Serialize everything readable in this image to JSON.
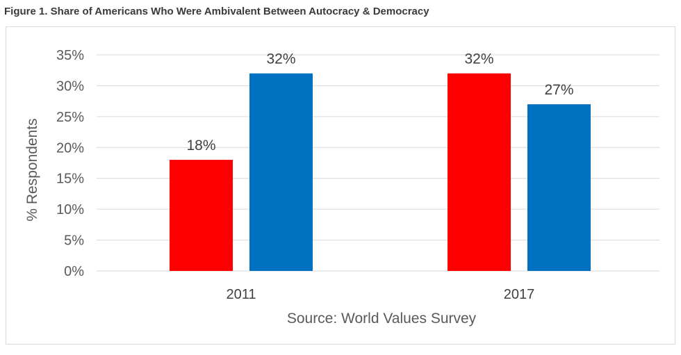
{
  "figure": {
    "title": "Figure 1. Share of Americans Who Were Ambivalent Between Autocracy & Democracy"
  },
  "chart_data": {
    "type": "bar",
    "categories": [
      "2011",
      "2017"
    ],
    "series": [
      {
        "color": "#ff0000",
        "values": [
          18,
          32
        ],
        "labels": [
          "18%",
          "32%"
        ]
      },
      {
        "color": "#0070c0",
        "values": [
          32,
          27
        ],
        "labels": [
          "32%",
          "27%"
        ]
      }
    ],
    "ylabel": "% Respondents",
    "xlabel": "Source: World Values Survey",
    "ylim": [
      0,
      35
    ],
    "yticks": [
      0,
      5,
      10,
      15,
      20,
      25,
      30,
      35
    ],
    "ytick_labels": [
      "0%",
      "5%",
      "10%",
      "15%",
      "20%",
      "25%",
      "30%",
      "35%"
    ],
    "grid": true,
    "grid_color": "#d9d9d9",
    "legend": "none"
  }
}
